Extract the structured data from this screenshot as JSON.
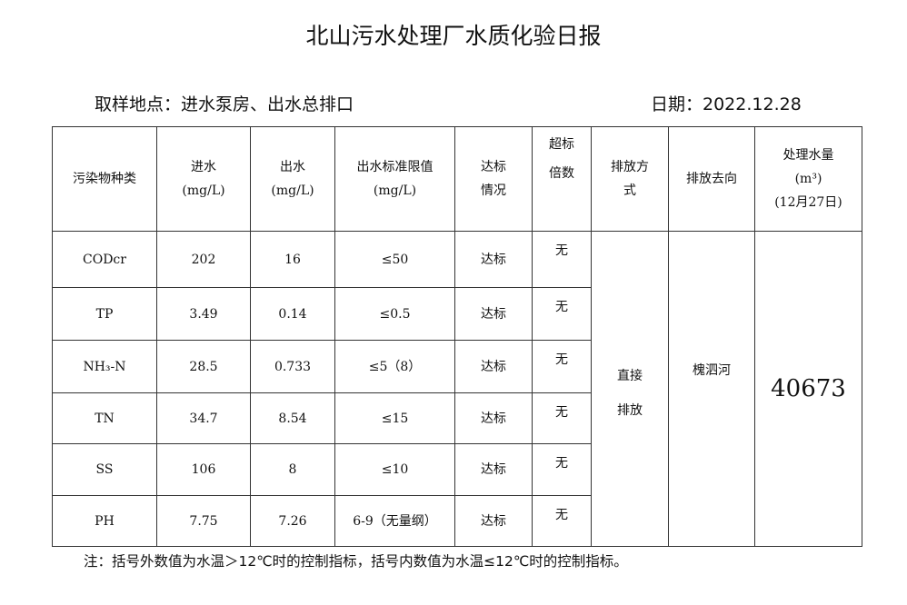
{
  "title": "北山污水处理厂水质化验日报",
  "sampling_location": "取样地点：进水泵房、出水总排口",
  "date": "日期：2022.12.28",
  "headers": {
    "pollutant": "污染物种类",
    "influent": "进水",
    "influent_unit": "(mg/L)",
    "effluent": "出水",
    "effluent_unit": "(mg/L)",
    "limit": "出水标准限值",
    "limit_unit": "(mg/L)",
    "compliance_1": "达标",
    "compliance_2": "情况",
    "exceed_1": "超标",
    "exceed_2": "倍数",
    "discharge_method_1": "排放方",
    "discharge_method_2": "式",
    "discharge_dest": "排放去向",
    "volume": "处理水量",
    "volume_unit": "(m³)",
    "volume_date": "(12月27日)"
  },
  "rows": [
    {
      "name": "CODcr",
      "in": "202",
      "out": "16",
      "limit": "≤50",
      "status": "达标",
      "exceed": "无"
    },
    {
      "name": "TP",
      "in": "3.49",
      "out": "0.14",
      "limit": "≤0.5",
      "status": "达标",
      "exceed": "无"
    },
    {
      "name": "NH₃-N",
      "in": "28.5",
      "out": "0.733",
      "limit": "≤5（8）",
      "status": "达标",
      "exceed": "无"
    },
    {
      "name": "TN",
      "in": "34.7",
      "out": "8.54",
      "limit": "≤15",
      "status": "达标",
      "exceed": "无"
    },
    {
      "name": "SS",
      "in": "106",
      "out": "8",
      "limit": "≤10",
      "status": "达标",
      "exceed": "无"
    },
    {
      "name": "PH",
      "in": "7.75",
      "out": "7.26",
      "limit": "6-9（无量纲）",
      "status": "达标",
      "exceed": "无"
    }
  ],
  "discharge_method_1": "直接",
  "discharge_method_2": "排放",
  "discharge_dest": "槐泗河",
  "volume": "40673",
  "note": "注：括号外数值为水温＞12℃时的控制指标，括号内数值为水温≤12℃时的控制指标。"
}
